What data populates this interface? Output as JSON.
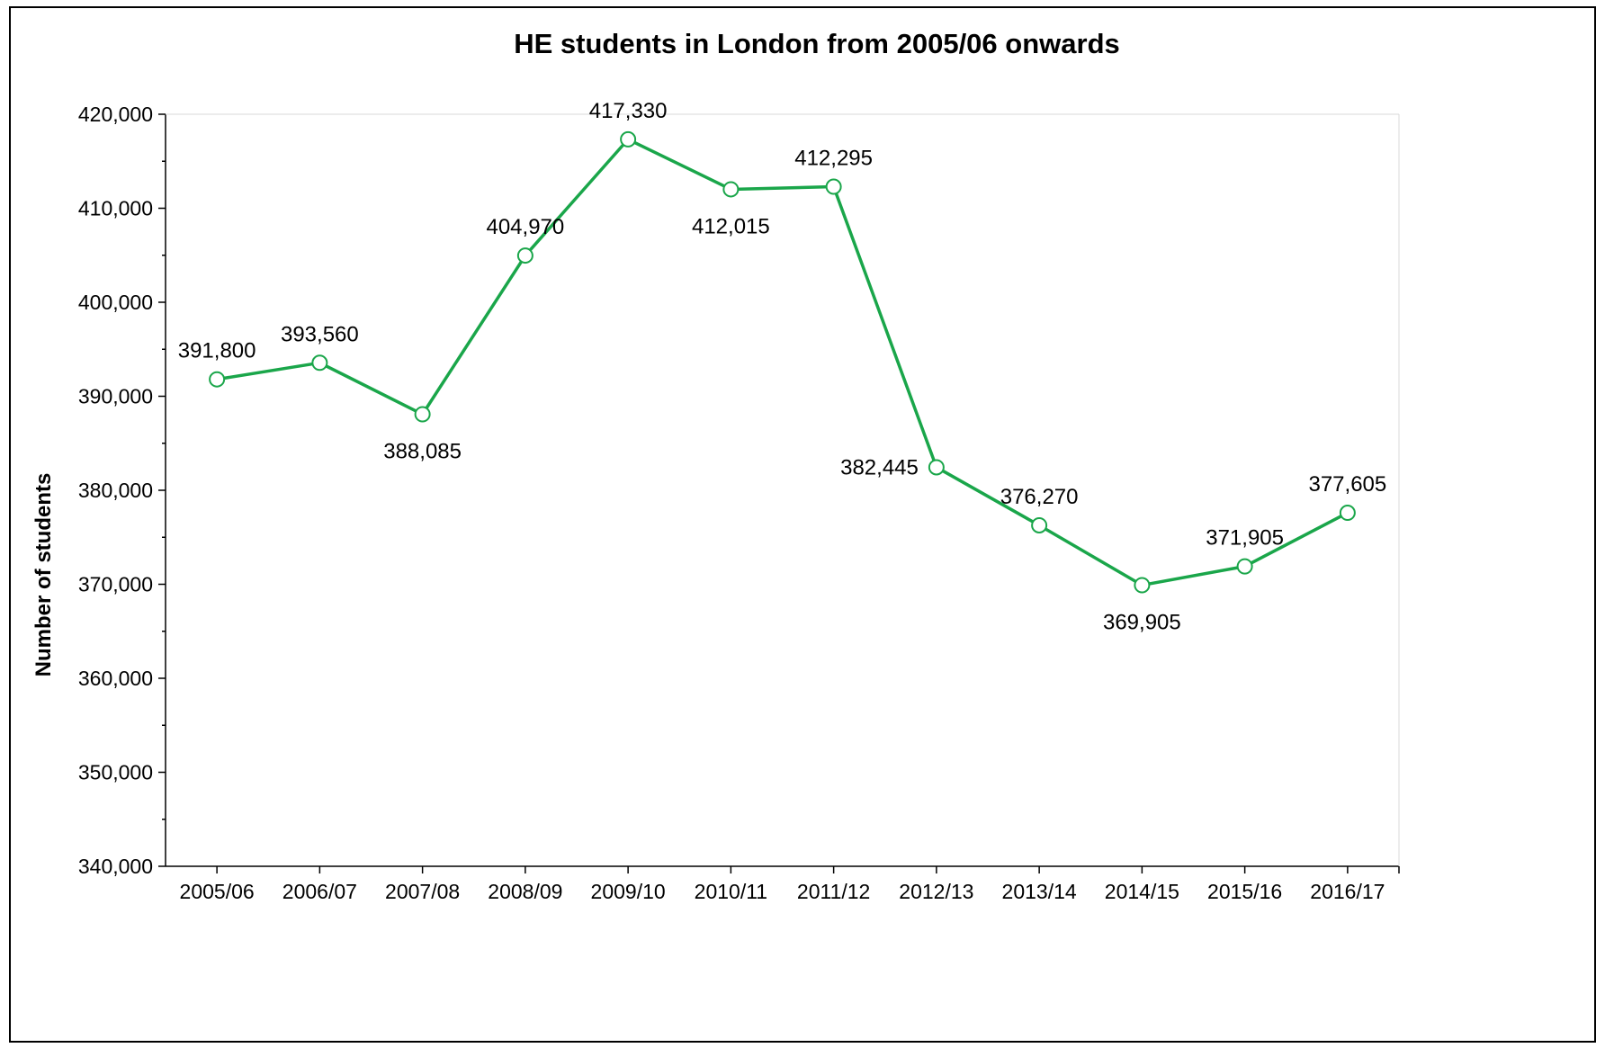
{
  "chart_data": {
    "type": "line",
    "title": "HE students in London from 2005/06 onwards",
    "xlabel": "",
    "ylabel": "Number of students",
    "categories": [
      "2005/06",
      "2006/07",
      "2007/08",
      "2008/09",
      "2009/10",
      "2010/11",
      "2011/12",
      "2012/13",
      "2013/14",
      "2014/15",
      "2015/16",
      "2016/17"
    ],
    "series": [
      {
        "values": [
          391800,
          393560,
          388085,
          404970,
          417330,
          412015,
          412295,
          382445,
          376270,
          369905,
          371905,
          377605
        ],
        "labels": [
          "391,800",
          "393,560",
          "388,085",
          "404,970",
          "417,330",
          "412,015",
          "412,295",
          "382,445",
          "376,270",
          "369,905",
          "371,905",
          "377,605"
        ],
        "label_positions": [
          "above",
          "above",
          "below",
          "above",
          "above",
          "below",
          "above",
          "left",
          "above",
          "below",
          "above",
          "above"
        ],
        "color": "#1aa64a",
        "marker": "hollow-circle"
      }
    ],
    "ylim": [
      340000,
      420000
    ],
    "yticks": [
      340000,
      350000,
      360000,
      370000,
      380000,
      390000,
      400000,
      410000,
      420000
    ],
    "ytick_labels": [
      "340,000",
      "350,000",
      "360,000",
      "370,000",
      "380,000",
      "390,000",
      "400,000",
      "410,000",
      "420,000"
    ],
    "grid": false,
    "legend": "none"
  }
}
